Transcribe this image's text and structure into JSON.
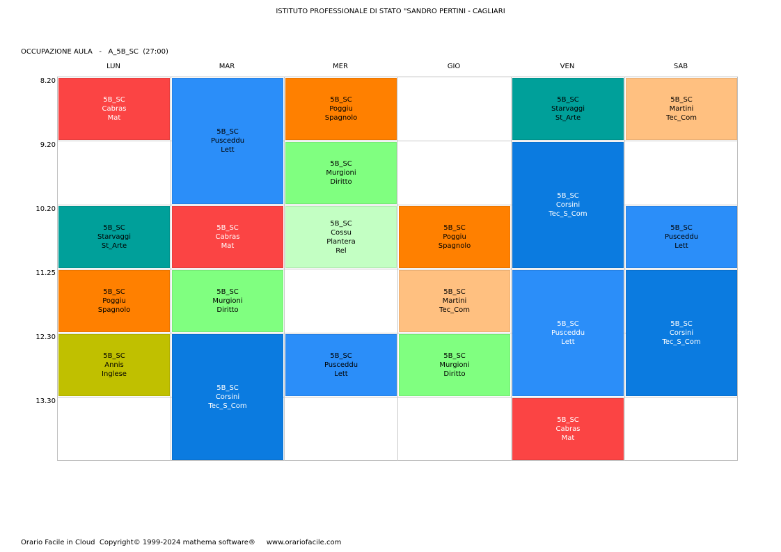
{
  "header": {
    "school": "ISTITUTO PROFESSIONALE DI STATO \"SANDRO PERTINI - CAGLIARI",
    "occupancy_label": "OCCUPAZIONE AULA   -   A_5B_SC  (27:00)"
  },
  "days": [
    "LUN",
    "MAR",
    "MER",
    "GIO",
    "VEN",
    "SAB"
  ],
  "times": [
    "8.20",
    "9.20",
    "10.20",
    "11.25",
    "12.30",
    "13.30"
  ],
  "colors": {
    "red": "#fb4444",
    "blue": "#2b8ef9",
    "darkblue": "#0b7be0",
    "orange": "#ff8000",
    "green": "#80ff80",
    "lightgreen": "#c3ffc3",
    "teal": "#00a09a",
    "peach": "#ffc080",
    "olive": "#c0c000"
  },
  "lessons": [
    {
      "day": 0,
      "start": 0,
      "span": 1,
      "color": "red",
      "tone": "dark",
      "lines": [
        "5B_SC",
        "Cabras",
        "Mat"
      ]
    },
    {
      "day": 0,
      "start": 2,
      "span": 1,
      "color": "teal",
      "tone": "light",
      "lines": [
        "5B_SC",
        "Starvaggi",
        "St_Arte"
      ]
    },
    {
      "day": 0,
      "start": 3,
      "span": 1,
      "color": "orange",
      "tone": "light",
      "lines": [
        "5B_SC",
        "Poggiu",
        "Spagnolo"
      ]
    },
    {
      "day": 0,
      "start": 4,
      "span": 1,
      "color": "olive",
      "tone": "light",
      "lines": [
        "5B_SC",
        "Annis",
        "Inglese"
      ]
    },
    {
      "day": 1,
      "start": 0,
      "span": 2,
      "color": "blue",
      "tone": "light",
      "lines": [
        "5B_SC",
        "Pusceddu",
        "Lett"
      ]
    },
    {
      "day": 1,
      "start": 2,
      "span": 1,
      "color": "red",
      "tone": "dark",
      "lines": [
        "5B_SC",
        "Cabras",
        "Mat"
      ]
    },
    {
      "day": 1,
      "start": 3,
      "span": 1,
      "color": "green",
      "tone": "light",
      "lines": [
        "5B_SC",
        "Murgioni",
        "Diritto"
      ]
    },
    {
      "day": 1,
      "start": 4,
      "span": 2,
      "color": "darkblue",
      "tone": "dark",
      "lines": [
        "5B_SC",
        "Corsini",
        "Tec_S_Com"
      ]
    },
    {
      "day": 2,
      "start": 0,
      "span": 1,
      "color": "orange",
      "tone": "light",
      "lines": [
        "5B_SC",
        "Poggiu",
        "Spagnolo"
      ]
    },
    {
      "day": 2,
      "start": 1,
      "span": 1,
      "color": "green",
      "tone": "light",
      "lines": [
        "5B_SC",
        "Murgioni",
        "Diritto"
      ]
    },
    {
      "day": 2,
      "start": 2,
      "span": 1,
      "color": "lightgreen",
      "tone": "light",
      "lines": [
        "5B_SC",
        "Cossu",
        "Plantera",
        "Rel"
      ]
    },
    {
      "day": 2,
      "start": 4,
      "span": 1,
      "color": "blue",
      "tone": "light",
      "lines": [
        "5B_SC",
        "Pusceddu",
        "Lett"
      ]
    },
    {
      "day": 3,
      "start": 2,
      "span": 1,
      "color": "orange",
      "tone": "light",
      "lines": [
        "5B_SC",
        "Poggiu",
        "Spagnolo"
      ]
    },
    {
      "day": 3,
      "start": 3,
      "span": 1,
      "color": "peach",
      "tone": "light",
      "lines": [
        "5B_SC",
        "Martini",
        "Tec_Com"
      ]
    },
    {
      "day": 3,
      "start": 4,
      "span": 1,
      "color": "green",
      "tone": "light",
      "lines": [
        "5B_SC",
        "Murgioni",
        "Diritto"
      ]
    },
    {
      "day": 4,
      "start": 0,
      "span": 1,
      "color": "teal",
      "tone": "light",
      "lines": [
        "5B_SC",
        "Starvaggi",
        "St_Arte"
      ]
    },
    {
      "day": 4,
      "start": 1,
      "span": 2,
      "color": "darkblue",
      "tone": "dark",
      "lines": [
        "5B_SC",
        "Corsini",
        "Tec_S_Com"
      ]
    },
    {
      "day": 4,
      "start": 3,
      "span": 2,
      "color": "blue",
      "tone": "dark",
      "lines": [
        "5B_SC",
        "Pusceddu",
        "Lett"
      ]
    },
    {
      "day": 4,
      "start": 5,
      "span": 1,
      "color": "red",
      "tone": "dark",
      "lines": [
        "5B_SC",
        "Cabras",
        "Mat"
      ]
    },
    {
      "day": 5,
      "start": 0,
      "span": 1,
      "color": "peach",
      "tone": "light",
      "lines": [
        "5B_SC",
        "Martini",
        "Tec_Com"
      ]
    },
    {
      "day": 5,
      "start": 2,
      "span": 1,
      "color": "blue",
      "tone": "light",
      "lines": [
        "5B_SC",
        "Pusceddu",
        "Lett"
      ]
    },
    {
      "day": 5,
      "start": 3,
      "span": 2,
      "color": "darkblue",
      "tone": "dark",
      "lines": [
        "5B_SC",
        "Corsini",
        "Tec_S_Com"
      ]
    }
  ],
  "footer": {
    "text": "Orario Facile in Cloud  Copyright© 1999-2024 mathema software®     www.orariofacile.com"
  }
}
